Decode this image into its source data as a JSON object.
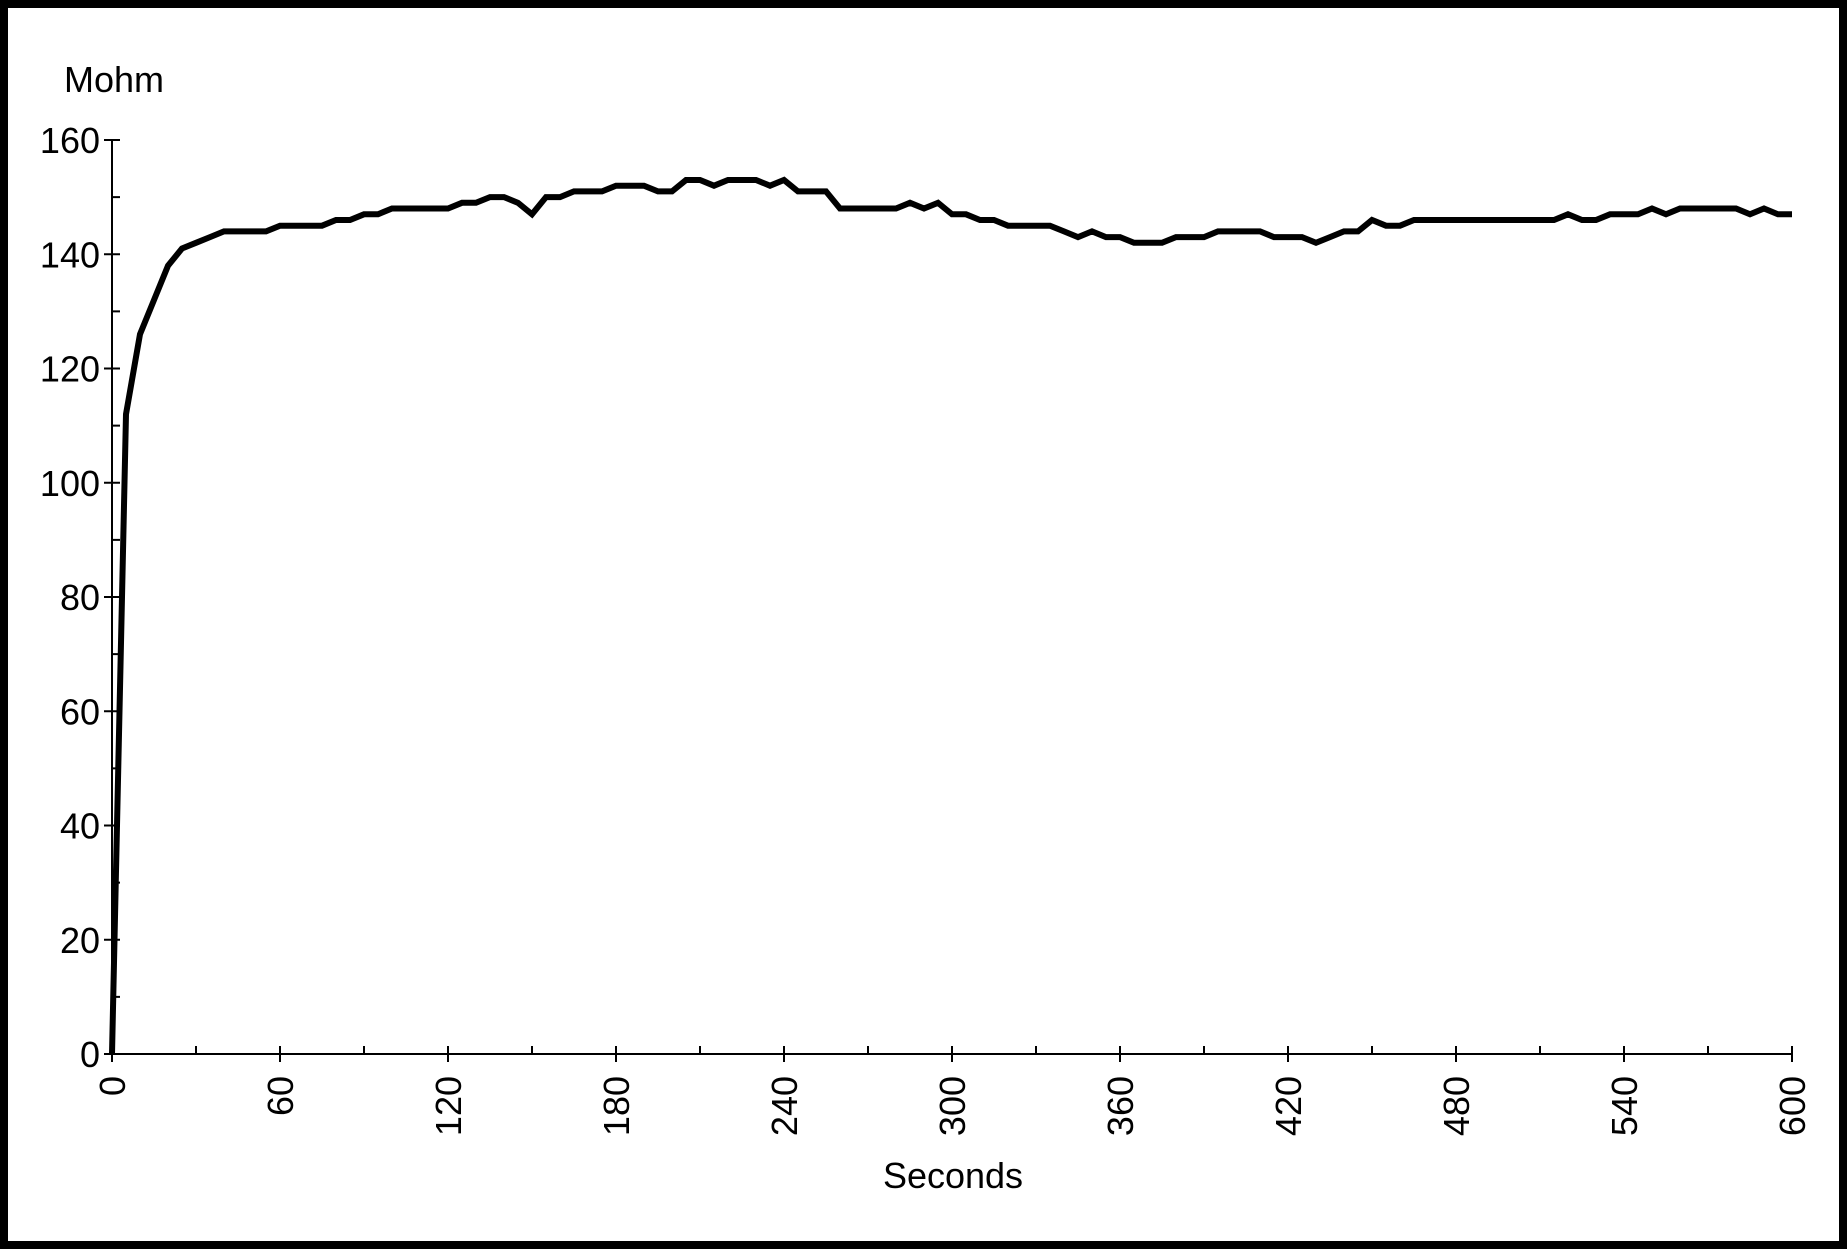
{
  "chart_data": {
    "type": "line",
    "ylabel": "Mohm",
    "xlabel": "Seconds",
    "xlim": [
      0,
      600
    ],
    "ylim": [
      0,
      160
    ],
    "x_ticks": [
      0,
      60,
      120,
      180,
      240,
      300,
      360,
      420,
      480,
      540,
      600
    ],
    "y_ticks": [
      0,
      20,
      40,
      60,
      80,
      100,
      120,
      140,
      160
    ],
    "grid": false,
    "series": [
      {
        "x": [
          0,
          5,
          10,
          15,
          20,
          25,
          30,
          35,
          40,
          45,
          50,
          55,
          60,
          65,
          70,
          75,
          80,
          85,
          90,
          95,
          100,
          105,
          110,
          115,
          120,
          125,
          130,
          135,
          140,
          145,
          150,
          155,
          160,
          165,
          170,
          175,
          180,
          185,
          190,
          195,
          200,
          205,
          210,
          215,
          220,
          225,
          230,
          235,
          240,
          245,
          250,
          255,
          260,
          265,
          270,
          275,
          280,
          285,
          290,
          295,
          300,
          305,
          310,
          315,
          320,
          325,
          330,
          335,
          340,
          345,
          350,
          355,
          360,
          365,
          370,
          375,
          380,
          385,
          390,
          395,
          400,
          405,
          410,
          415,
          420,
          425,
          430,
          435,
          440,
          445,
          450,
          455,
          460,
          465,
          470,
          475,
          480,
          485,
          490,
          495,
          500,
          505,
          510,
          515,
          520,
          525,
          530,
          535,
          540,
          545,
          550,
          555,
          560,
          565,
          570,
          575,
          580,
          585,
          590,
          595,
          600
        ],
        "values": [
          0,
          112,
          126,
          132,
          138,
          141,
          142,
          143,
          144,
          144,
          144,
          144,
          145,
          145,
          145,
          145,
          146,
          146,
          147,
          147,
          148,
          148,
          148,
          148,
          148,
          149,
          149,
          150,
          150,
          149,
          147,
          150,
          150,
          151,
          151,
          151,
          152,
          152,
          152,
          151,
          151,
          153,
          153,
          152,
          153,
          153,
          153,
          152,
          153,
          151,
          151,
          151,
          148,
          148,
          148,
          148,
          148,
          149,
          148,
          149,
          147,
          147,
          146,
          146,
          145,
          145,
          145,
          145,
          144,
          143,
          144,
          143,
          143,
          142,
          142,
          142,
          143,
          143,
          143,
          144,
          144,
          144,
          144,
          143,
          143,
          143,
          142,
          143,
          144,
          144,
          146,
          145,
          145,
          146,
          146,
          146,
          146,
          146,
          146,
          146,
          146,
          146,
          146,
          146,
          147,
          146,
          146,
          147,
          147,
          147,
          148,
          147,
          148,
          148,
          148,
          148,
          148,
          147,
          148,
          147,
          147
        ]
      }
    ]
  }
}
